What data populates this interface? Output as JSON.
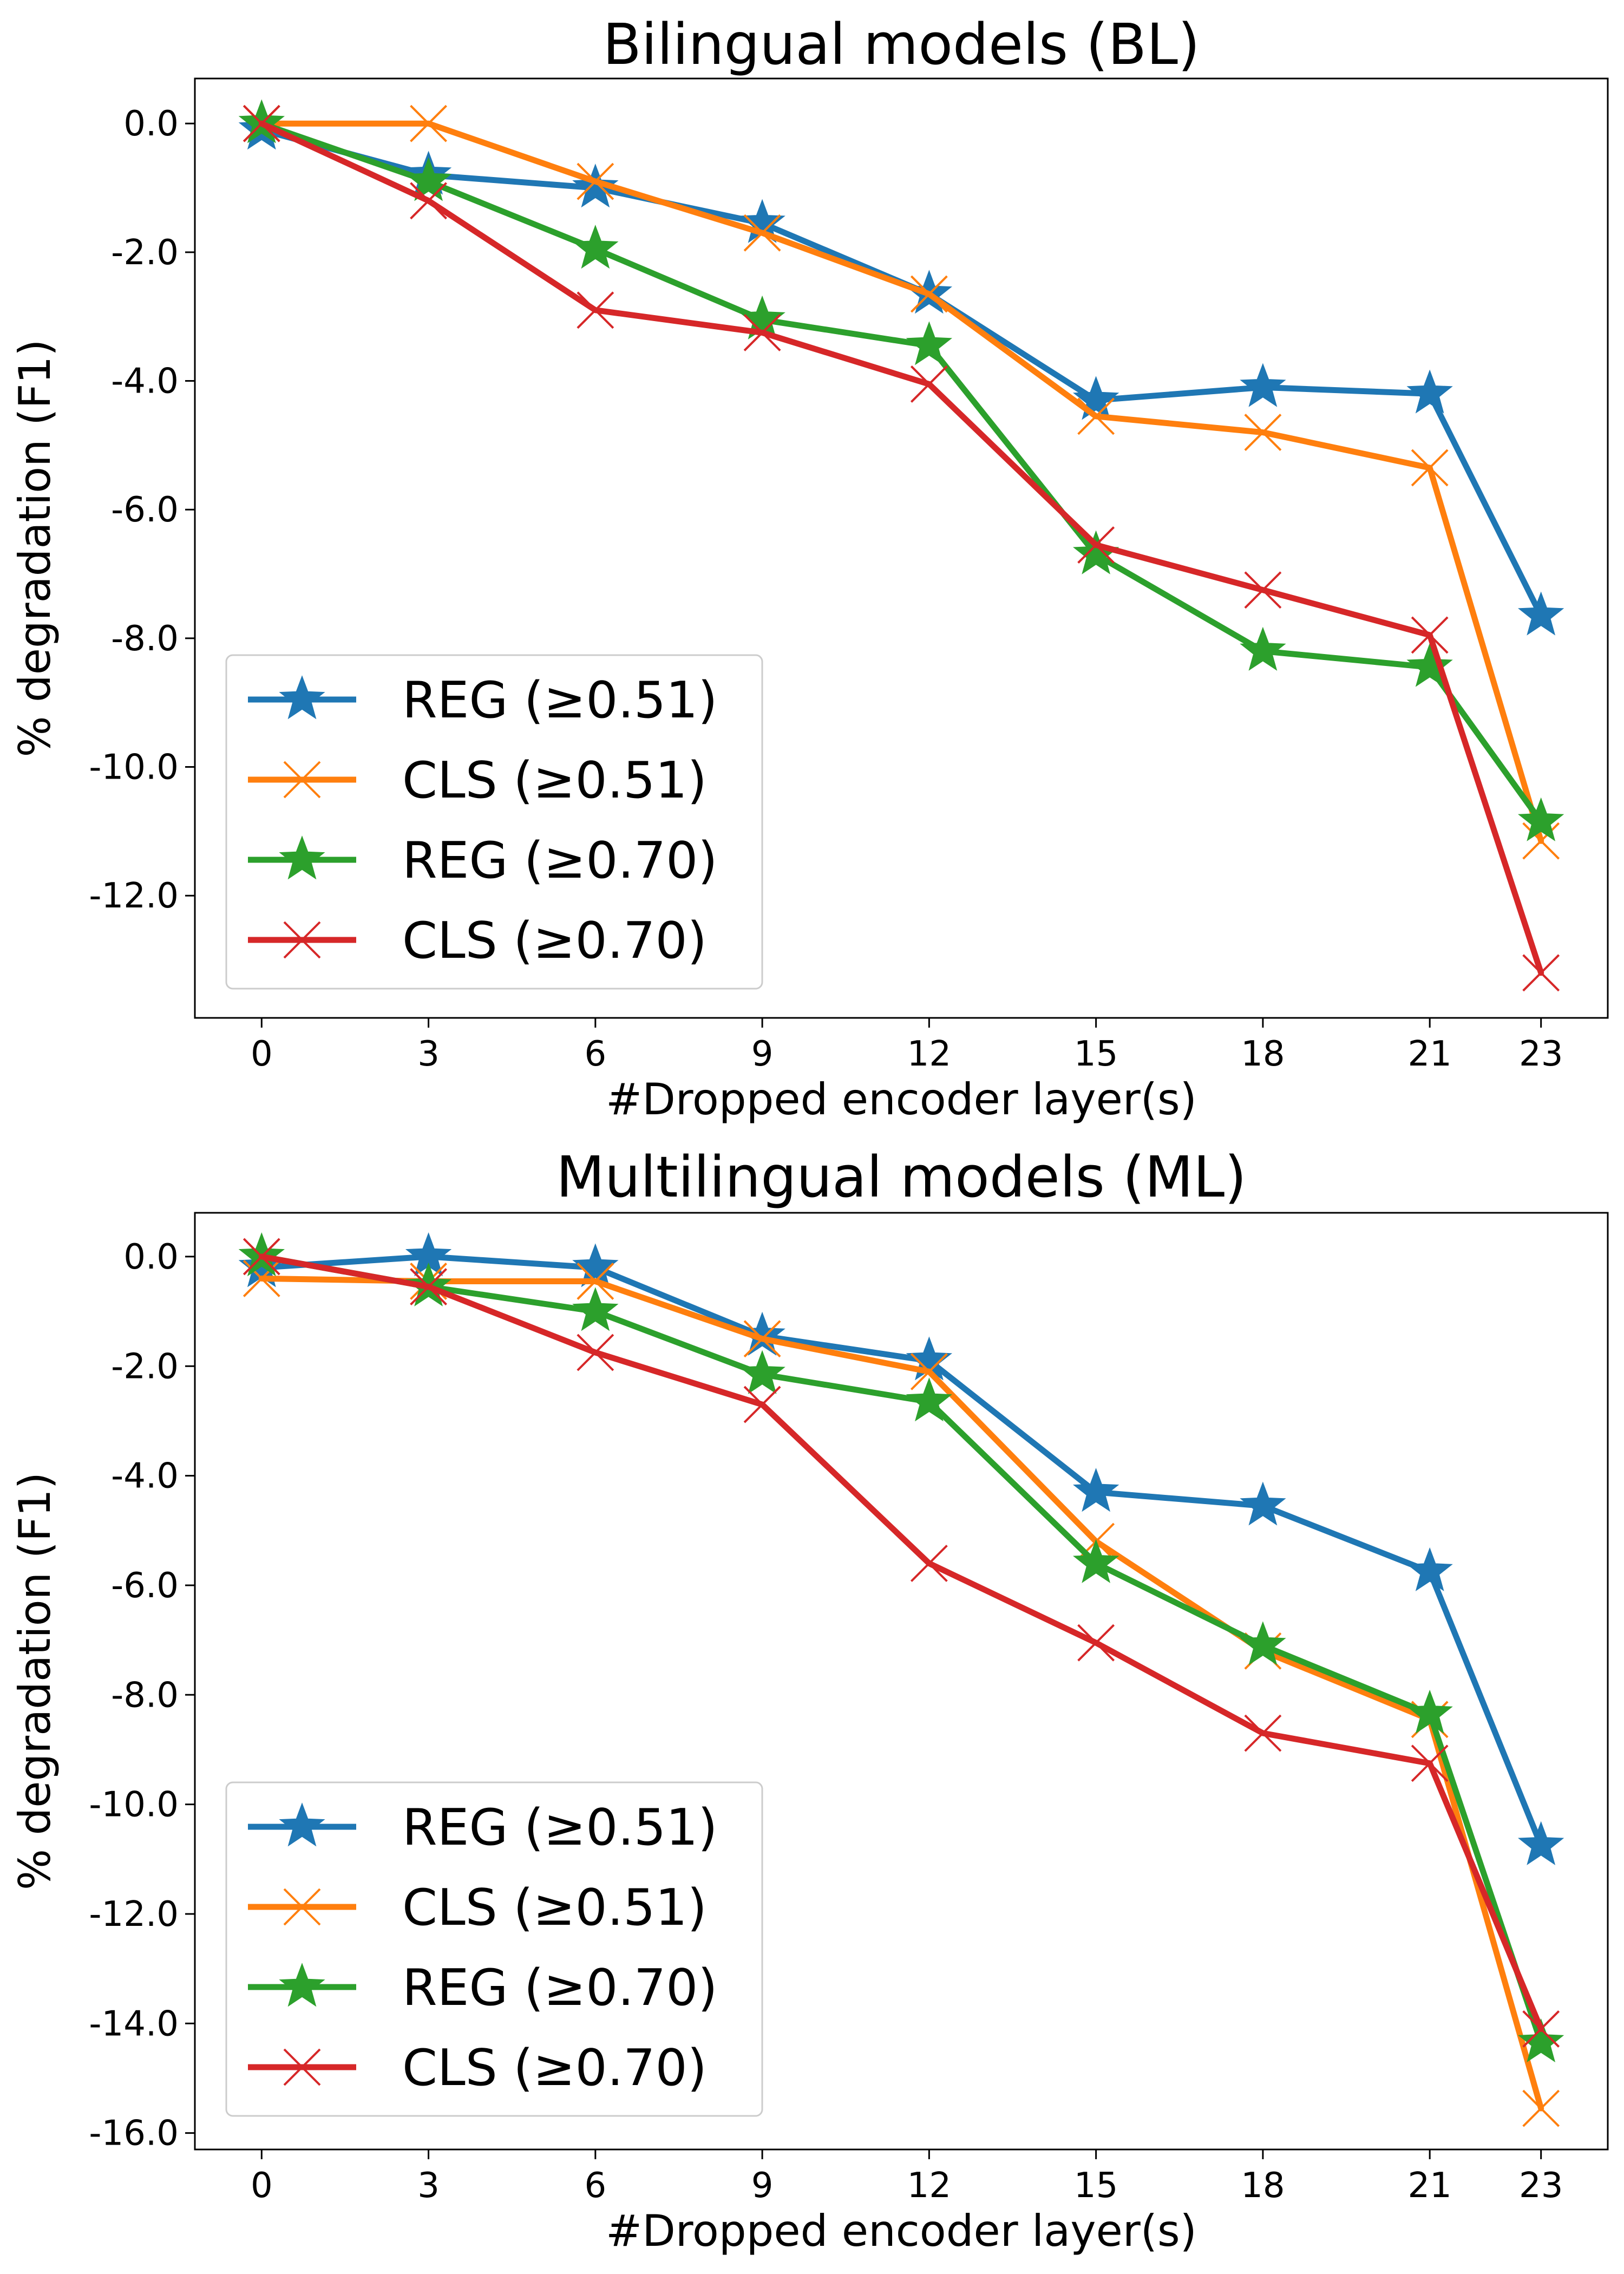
{
  "chart_data": [
    {
      "type": "line",
      "title": "Bilingual models (BL)",
      "xlabel": "#Dropped encoder layer(s)",
      "ylabel": "% degradation (F1)",
      "x": [
        0,
        3,
        6,
        9,
        12,
        15,
        18,
        21,
        23
      ],
      "xticks": [
        "0",
        "3",
        "6",
        "9",
        "12",
        "15",
        "18",
        "21",
        "23"
      ],
      "yticks": [
        "0.0",
        "-2.0",
        "-4.0",
        "-6.0",
        "-8.0",
        "-10.0",
        "-12.0"
      ],
      "xlim": [
        -1.2,
        24.2
      ],
      "ylim": [
        -13.9,
        0.7
      ],
      "legend_position": "lower-left",
      "series": [
        {
          "name": "REG (≥0.51)",
          "color": "#1f77b4",
          "marker": "star",
          "values": [
            -0.1,
            -0.8,
            -1.0,
            -1.55,
            -2.65,
            -4.3,
            -4.1,
            -4.2,
            -7.65
          ]
        },
        {
          "name": "CLS (≥0.51)",
          "color": "#ff7f0e",
          "marker": "x",
          "values": [
            0.0,
            0.0,
            -0.9,
            -1.7,
            -2.65,
            -4.55,
            -4.8,
            -5.35,
            -11.15
          ]
        },
        {
          "name": "REG (≥0.70)",
          "color": "#2ca02c",
          "marker": "star",
          "values": [
            0.0,
            -0.9,
            -1.95,
            -3.05,
            -3.45,
            -6.7,
            -8.2,
            -8.45,
            -10.85
          ]
        },
        {
          "name": "CLS (≥0.70)",
          "color": "#d62728",
          "marker": "x",
          "values": [
            0.0,
            -1.2,
            -2.9,
            -3.25,
            -4.05,
            -6.55,
            -7.25,
            -7.95,
            -13.2
          ]
        }
      ]
    },
    {
      "type": "line",
      "title": "Multilingual models (ML)",
      "xlabel": "#Dropped encoder layer(s)",
      "ylabel": "% degradation (F1)",
      "x": [
        0,
        3,
        6,
        9,
        12,
        15,
        18,
        21,
        23
      ],
      "xticks": [
        "0",
        "3",
        "6",
        "9",
        "12",
        "15",
        "18",
        "21",
        "23"
      ],
      "yticks": [
        "0.0",
        "-2.0",
        "-4.0",
        "-6.0",
        "-8.0",
        "-10.0",
        "-12.0",
        "-14.0",
        "-16.0"
      ],
      "xlim": [
        -1.2,
        24.2
      ],
      "ylim": [
        -16.3,
        0.8
      ],
      "legend_position": "lower-left",
      "series": [
        {
          "name": "REG (≥0.51)",
          "color": "#1f77b4",
          "marker": "star",
          "values": [
            -0.2,
            0.0,
            -0.2,
            -1.45,
            -1.9,
            -4.3,
            -4.55,
            -5.75,
            -10.75
          ]
        },
        {
          "name": "CLS (≥0.51)",
          "color": "#ff7f0e",
          "marker": "x",
          "values": [
            -0.4,
            -0.45,
            -0.45,
            -1.5,
            -2.1,
            -5.2,
            -7.2,
            -8.45,
            -15.55
          ]
        },
        {
          "name": "REG (≥0.70)",
          "color": "#2ca02c",
          "marker": "star",
          "values": [
            0.0,
            -0.55,
            -1.0,
            -2.15,
            -2.65,
            -5.6,
            -7.1,
            -8.35,
            -14.35
          ]
        },
        {
          "name": "CLS (≥0.70)",
          "color": "#d62728",
          "marker": "x",
          "values": [
            0.0,
            -0.55,
            -1.75,
            -2.7,
            -5.6,
            -7.05,
            -8.7,
            -9.25,
            -14.1
          ]
        }
      ]
    }
  ]
}
